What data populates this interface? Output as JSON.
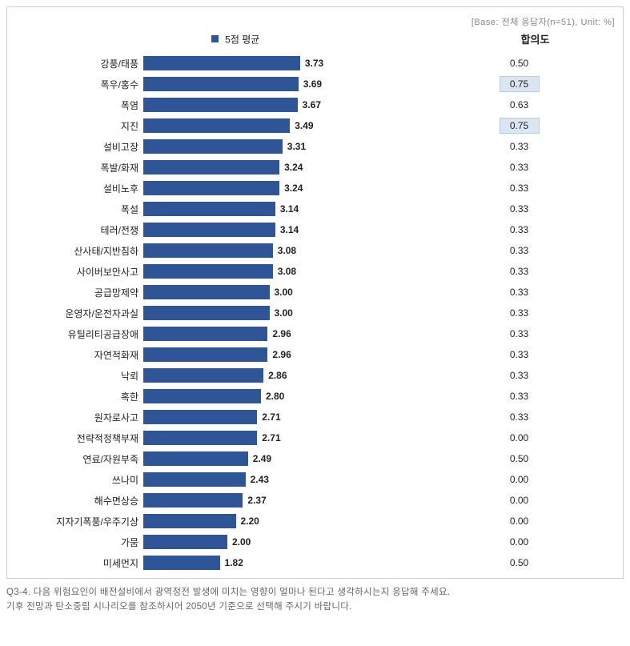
{
  "base_label": "[Base: 전체 응답자(n=51), Unit: %]",
  "legend_label": "5점 평균",
  "consensus_header": "합의도",
  "bar_color": "#2f5597",
  "highlight_bg": "#dce6f2",
  "highlight_border": "#b8cce4",
  "max_value": 5.0,
  "bar_area_width": 350,
  "items": [
    {
      "label": "강풍/태풍",
      "value": 3.73,
      "consensus": "0.50",
      "highlight": false
    },
    {
      "label": "폭우/홍수",
      "value": 3.69,
      "consensus": "0.75",
      "highlight": true
    },
    {
      "label": "폭염",
      "value": 3.67,
      "consensus": "0.63",
      "highlight": false
    },
    {
      "label": "지진",
      "value": 3.49,
      "consensus": "0.75",
      "highlight": true
    },
    {
      "label": "설비고장",
      "value": 3.31,
      "consensus": "0.33",
      "highlight": false
    },
    {
      "label": "폭발/화재",
      "value": 3.24,
      "consensus": "0.33",
      "highlight": false
    },
    {
      "label": "설비노후",
      "value": 3.24,
      "consensus": "0.33",
      "highlight": false
    },
    {
      "label": "폭설",
      "value": 3.14,
      "consensus": "0.33",
      "highlight": false
    },
    {
      "label": "테러/전쟁",
      "value": 3.14,
      "consensus": "0.33",
      "highlight": false
    },
    {
      "label": "산사태/지반침하",
      "value": 3.08,
      "consensus": "0.33",
      "highlight": false
    },
    {
      "label": "사이버보안사고",
      "value": 3.08,
      "consensus": "0.33",
      "highlight": false
    },
    {
      "label": "공급망제약",
      "value": 3.0,
      "consensus": "0.33",
      "highlight": false
    },
    {
      "label": "운영자/운전자과실",
      "value": 3.0,
      "consensus": "0.33",
      "highlight": false
    },
    {
      "label": "유틸리티공급장애",
      "value": 2.96,
      "consensus": "0.33",
      "highlight": false
    },
    {
      "label": "자연적화재",
      "value": 2.96,
      "consensus": "0.33",
      "highlight": false
    },
    {
      "label": "낙뢰",
      "value": 2.86,
      "consensus": "0.33",
      "highlight": false
    },
    {
      "label": "혹한",
      "value": 2.8,
      "consensus": "0.33",
      "highlight": false
    },
    {
      "label": "원자로사고",
      "value": 2.71,
      "consensus": "0.33",
      "highlight": false
    },
    {
      "label": "전략적정책부재",
      "value": 2.71,
      "consensus": "0.00",
      "highlight": false
    },
    {
      "label": "연료/자원부족",
      "value": 2.49,
      "consensus": "0.50",
      "highlight": false
    },
    {
      "label": "쓰나미",
      "value": 2.43,
      "consensus": "0.00",
      "highlight": false
    },
    {
      "label": "해수면상승",
      "value": 2.37,
      "consensus": "0.00",
      "highlight": false
    },
    {
      "label": "지자기폭풍/우주기상",
      "value": 2.2,
      "consensus": "0.00",
      "highlight": false
    },
    {
      "label": "가뭄",
      "value": 2.0,
      "consensus": "0.00",
      "highlight": false
    },
    {
      "label": "미세먼지",
      "value": 1.82,
      "consensus": "0.50",
      "highlight": false
    }
  ],
  "question_line1": "Q3-4. 다음 위험요인이 배전설비에서 광역정전 발생에 미치는 영향이 얼마나 된다고 생각하시는지 응답해 주세요.",
  "question_line2": "기후 전망과 탄소중립 시나리오를 참조하시어 2050년 기준으로 선택해 주시기 바랍니다."
}
